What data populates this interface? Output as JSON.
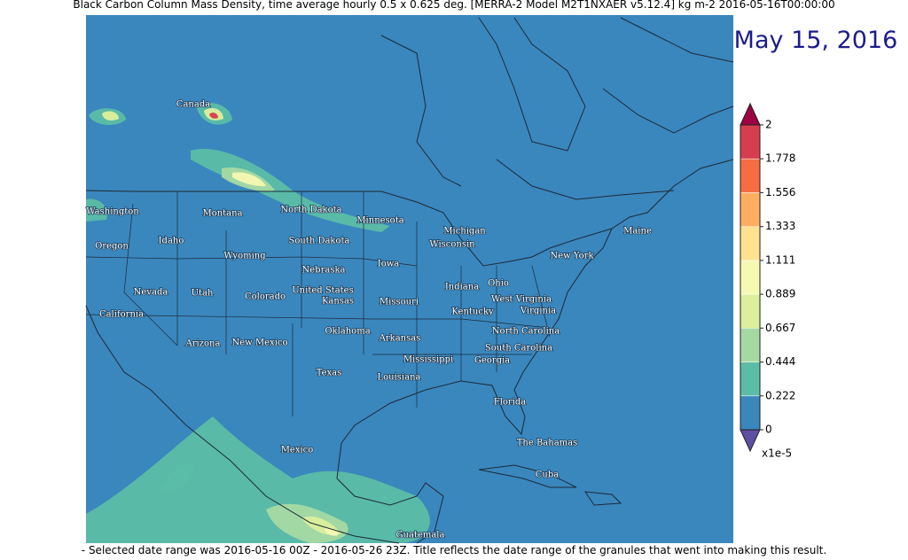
{
  "title": "Black Carbon Column Mass Density, time average hourly 0.5 x 0.625 deg. [MERRA-2 Model M2T1NXAER v5.12.4] kg m-2 2016-05-16T00:00:00",
  "date_label": "May 15, 2016",
  "colorbar": {
    "ticks": [
      0,
      0.222,
      0.444,
      0.667,
      0.889,
      1.111,
      1.333,
      1.556,
      1.778,
      2
    ],
    "colors": [
      "#3a87bd",
      "#5bbda6",
      "#a6d9a2",
      "#dcef9c",
      "#f5f9b2",
      "#fee28f",
      "#fdae61",
      "#f46d43",
      "#d53e4f"
    ],
    "under_color": "#5e4fa2",
    "over_color": "#9e0142",
    "unit_label": "x1e-5"
  },
  "places": [
    "Canada",
    "Washington",
    "Montana",
    "North Dakota",
    "Minnesota",
    "Michigan",
    "Wisconsin",
    "Maine",
    "Oregon",
    "Idaho",
    "South Dakota",
    "Wyoming",
    "New York",
    "Iowa",
    "Nebraska",
    "Nevada",
    "Utah",
    "Colorado",
    "United States",
    "Kansas",
    "Indiana",
    "Ohio",
    "West Virginia",
    "Virginia",
    "Missouri",
    "Kentucky",
    "California",
    "Oklahoma",
    "North Carolina",
    "Arkansas",
    "Arizona",
    "New Mexico",
    "South Carolina",
    "Mississippi",
    "Georgia",
    "Texas",
    "Louisiana",
    "Florida",
    "The Bahamas",
    "Mexico",
    "Cuba",
    "Guatemala"
  ],
  "footer": "- Selected date range was 2016-05-16 00Z - 2016-05-26 23Z. Title reflects the date range of the granules that went into making this result."
}
